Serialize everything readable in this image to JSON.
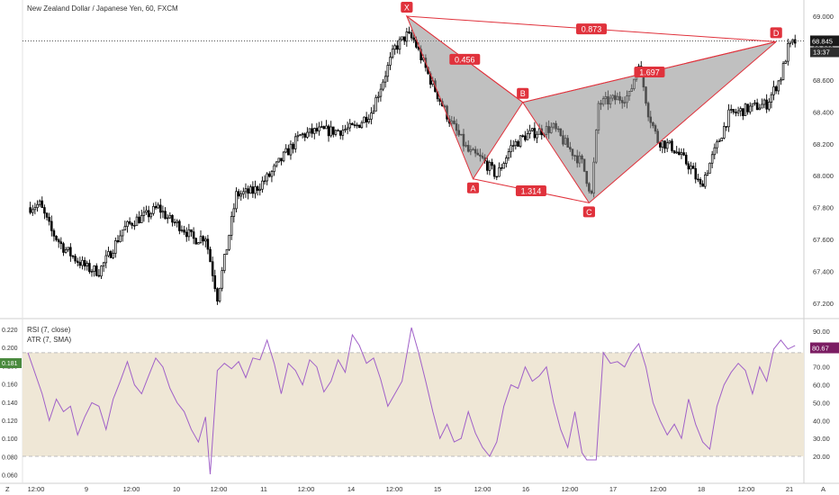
{
  "header": {
    "symbol_title": "New Zealand Dollar / Japanese Yen, 60, FXCM"
  },
  "indicators": {
    "rsi_label": "RSI (7, close)",
    "atr_label": "ATR (7, SMA)"
  },
  "price_axis": {
    "ticks": [
      "69.000",
      "68.800",
      "68.600",
      "68.400",
      "68.200",
      "68.000",
      "67.800",
      "67.600",
      "67.400",
      "67.200"
    ],
    "current_price": "68.845",
    "countdown": "13:37"
  },
  "atr_axis": {
    "ticks": [
      "0.220",
      "0.200",
      "0.180",
      "0.160",
      "0.140",
      "0.120",
      "0.100",
      "0.080",
      "0.060"
    ],
    "current": "0.181"
  },
  "rsi_axis": {
    "ticks": [
      "90.00",
      "80.00",
      "70.00",
      "60.00",
      "50.00",
      "40.00",
      "30.00",
      "20.00"
    ],
    "current": "80.67"
  },
  "time_axis": {
    "ticks": [
      "12:00",
      "9",
      "12:00",
      "10",
      "12:00",
      "11",
      "12:00",
      "14",
      "12:00",
      "15",
      "12:00",
      "16",
      "12:00",
      "17",
      "12:00",
      "18",
      "12:00",
      "21"
    ],
    "corner_left": "Z",
    "corner_right": "A"
  },
  "colors": {
    "up_candle": "#ffffff",
    "down_candle": "#000000",
    "pattern_stroke": "#e0323c",
    "pattern_fill": "#8c8c8c",
    "label_bg": "#e0323c",
    "rsi_line": "#a060c8",
    "rsi_band": "#efe7d6",
    "price_badge": "#1a1a1a",
    "rsi_badge": "#7b1d63",
    "atr_badge": "#4a8a3e"
  },
  "chart_data": [
    {
      "type": "candlestick",
      "title": "New Zealand Dollar / Japanese Yen, 60, FXCM",
      "ylim": [
        67.15,
        69.05
      ],
      "y_ticks": [
        69.0,
        68.8,
        68.6,
        68.4,
        68.2,
        68.0,
        67.8,
        67.6,
        67.4,
        67.2
      ],
      "x_ticks": [
        "12:00",
        "9",
        "12:00",
        "10",
        "12:00",
        "11",
        "12:00",
        "14",
        "12:00",
        "15",
        "12:00",
        "16",
        "12:00",
        "17",
        "12:00",
        "18",
        "12:00",
        "21"
      ],
      "current_price": 68.845,
      "close_path": [
        [
          0,
          67.8
        ],
        [
          5,
          67.82
        ],
        [
          10,
          67.65
        ],
        [
          15,
          67.55
        ],
        [
          20,
          67.48
        ],
        [
          25,
          67.42
        ],
        [
          30,
          67.4
        ],
        [
          35,
          67.52
        ],
        [
          40,
          67.66
        ],
        [
          45,
          67.72
        ],
        [
          50,
          67.75
        ],
        [
          55,
          67.8
        ],
        [
          60,
          67.72
        ],
        [
          65,
          67.68
        ],
        [
          70,
          67.6
        ],
        [
          75,
          67.62
        ],
        [
          80,
          67.24
        ],
        [
          84,
          67.55
        ],
        [
          88,
          67.88
        ],
        [
          95,
          67.9
        ],
        [
          102,
          68.0
        ],
        [
          108,
          68.12
        ],
        [
          115,
          68.25
        ],
        [
          122,
          68.28
        ],
        [
          130,
          68.28
        ],
        [
          138,
          68.3
        ],
        [
          145,
          68.4
        ],
        [
          150,
          68.6
        ],
        [
          155,
          68.8
        ],
        [
          160,
          68.88
        ],
        [
          163,
          68.85
        ],
        [
          170,
          68.6
        ],
        [
          178,
          68.35
        ],
        [
          186,
          68.15
        ],
        [
          192,
          68.1
        ],
        [
          198,
          68.0
        ],
        [
          204,
          68.18
        ],
        [
          210,
          68.25
        ],
        [
          216,
          68.28
        ],
        [
          222,
          68.3
        ],
        [
          228,
          68.18
        ],
        [
          234,
          68.08
        ],
        [
          238,
          67.88
        ],
        [
          241,
          68.45
        ],
        [
          248,
          68.48
        ],
        [
          254,
          68.5
        ],
        [
          258,
          68.72
        ],
        [
          262,
          68.4
        ],
        [
          266,
          68.22
        ],
        [
          272,
          68.18
        ],
        [
          280,
          68.05
        ],
        [
          284,
          67.93
        ],
        [
          290,
          68.15
        ],
        [
          296,
          68.38
        ],
        [
          304,
          68.42
        ],
        [
          312,
          68.45
        ],
        [
          318,
          68.62
        ],
        [
          321,
          68.8
        ],
        [
          324,
          68.84
        ]
      ],
      "pattern": {
        "name": "XABCD",
        "points": [
          {
            "label": "X",
            "index": 160,
            "price": 69.0
          },
          {
            "label": "A",
            "index": 188,
            "price": 67.98
          },
          {
            "label": "B",
            "index": 209,
            "price": 68.46
          },
          {
            "label": "C",
            "index": 237,
            "price": 67.83
          },
          {
            "label": "D",
            "index": 316,
            "price": 68.84
          }
        ],
        "ratios": [
          {
            "label": "0.456",
            "between": [
              "X",
              "B"
            ]
          },
          {
            "label": "1.314",
            "between": [
              "A",
              "C"
            ]
          },
          {
            "label": "1.697",
            "between": [
              "B",
              "D"
            ]
          },
          {
            "label": "0.873",
            "between": [
              "X",
              "D"
            ]
          }
        ]
      }
    },
    {
      "type": "line",
      "series": [
        {
          "name": "RSI (7, close)",
          "current": 80.67
        }
      ],
      "ylim": [
        15,
        95
      ],
      "band": [
        20,
        78
      ],
      "y_ticks": [
        90,
        80,
        70,
        60,
        50,
        40,
        30,
        20
      ],
      "x": [
        0,
        6,
        9,
        12,
        15,
        18,
        21,
        24,
        27,
        30,
        33,
        36,
        39,
        42,
        45,
        48,
        51,
        54,
        57,
        60,
        63,
        66,
        69,
        72,
        75,
        77,
        80,
        83,
        86,
        89,
        92,
        95,
        98,
        101,
        104,
        107,
        110,
        113,
        116,
        119,
        122,
        125,
        128,
        131,
        134,
        137,
        140,
        143,
        146,
        149,
        152,
        155,
        158,
        162,
        165,
        168,
        171,
        174,
        177,
        180,
        183,
        186,
        189,
        192,
        195,
        198,
        201,
        204,
        207,
        210,
        213,
        216,
        219,
        222,
        225,
        228,
        231,
        234,
        236,
        240,
        243,
        246,
        249,
        252,
        255,
        258,
        261,
        264,
        267,
        270,
        273,
        276,
        279,
        282,
        285,
        288,
        291,
        294,
        297,
        300,
        303,
        306,
        309,
        312,
        315,
        318,
        321,
        324
      ],
      "values": [
        78,
        55,
        40,
        52,
        45,
        48,
        32,
        42,
        50,
        48,
        35,
        52,
        62,
        73,
        60,
        55,
        65,
        75,
        70,
        58,
        50,
        45,
        35,
        28,
        42,
        10,
        68,
        72,
        69,
        73,
        64,
        75,
        74,
        85,
        72,
        55,
        72,
        68,
        60,
        74,
        70,
        56,
        62,
        74,
        67,
        88,
        82,
        72,
        75,
        63,
        48,
        55,
        62,
        92,
        78,
        62,
        45,
        30,
        38,
        28,
        30,
        45,
        33,
        25,
        20,
        28,
        48,
        60,
        58,
        70,
        62,
        65,
        70,
        50,
        35,
        25,
        45,
        22,
        18,
        18,
        78,
        72,
        73,
        70,
        78,
        83,
        70,
        50,
        40,
        32,
        38,
        30,
        52,
        38,
        28,
        24,
        48,
        60,
        67,
        72,
        68,
        55,
        70,
        62,
        80,
        85,
        80,
        82
      ]
    }
  ]
}
